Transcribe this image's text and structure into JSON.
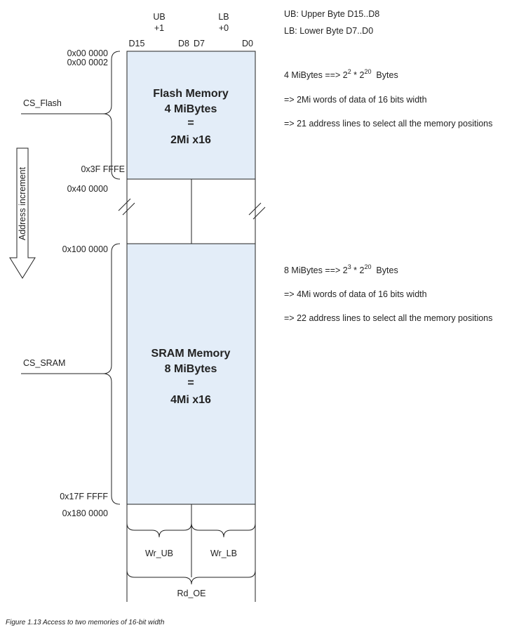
{
  "header": {
    "ub_label": "UB",
    "ub_offset": "+1",
    "lb_label": "LB",
    "lb_offset": "+0",
    "bit_labels": [
      "D15",
      "D8",
      "D7",
      "D0"
    ]
  },
  "legend": {
    "ub_note": "UB: Upper Byte D15..D8",
    "lb_note": "LB: Lower Byte D7..D0"
  },
  "flash": {
    "line1": "Flash Memory",
    "line2": "4 MiBytes",
    "line3": "=",
    "line4": "2Mi x16",
    "start_addr_1": "0x00 0000",
    "start_addr_2": "0x00 0002",
    "end_addr": "0x3F FFFE",
    "next_addr": "0x40 0000",
    "chip_select": "CS_Flash",
    "note_base": "4 MiBytes ==> 2",
    "note_exp1": "2",
    "note_mid": " * 2",
    "note_exp2": "20",
    "note_tail": "  Bytes",
    "note2": "=> 2Mi words of data of 16 bits width",
    "note3": "=> 21 address lines to select all the memory positions"
  },
  "sram": {
    "line1": "SRAM Memory",
    "line2": "8 MiBytes",
    "line3": "=",
    "line4": "4Mi x16",
    "start_addr": "0x100 0000",
    "end_addr": "0x17F FFFF",
    "next_addr": "0x180 0000",
    "chip_select": "CS_SRAM",
    "note_base": "8 MiBytes ==> 2",
    "note_exp1": "3",
    "note_mid": " * 2",
    "note_exp2": "20",
    "note_tail": "  Bytes",
    "note2": "=> 4Mi words of data of 16 bits width",
    "note3": "=> 22 address lines to select all the memory positions"
  },
  "arrow_label": "Address increment",
  "signals": {
    "wr_ub": "Wr_UB",
    "wr_lb": "Wr_LB",
    "rd_oe": "Rd_OE"
  },
  "caption": "Figure 1.13 Access to two memories of 16-bit width",
  "colors": {
    "memory_fill": "#e3edf8",
    "line": "#222222"
  }
}
